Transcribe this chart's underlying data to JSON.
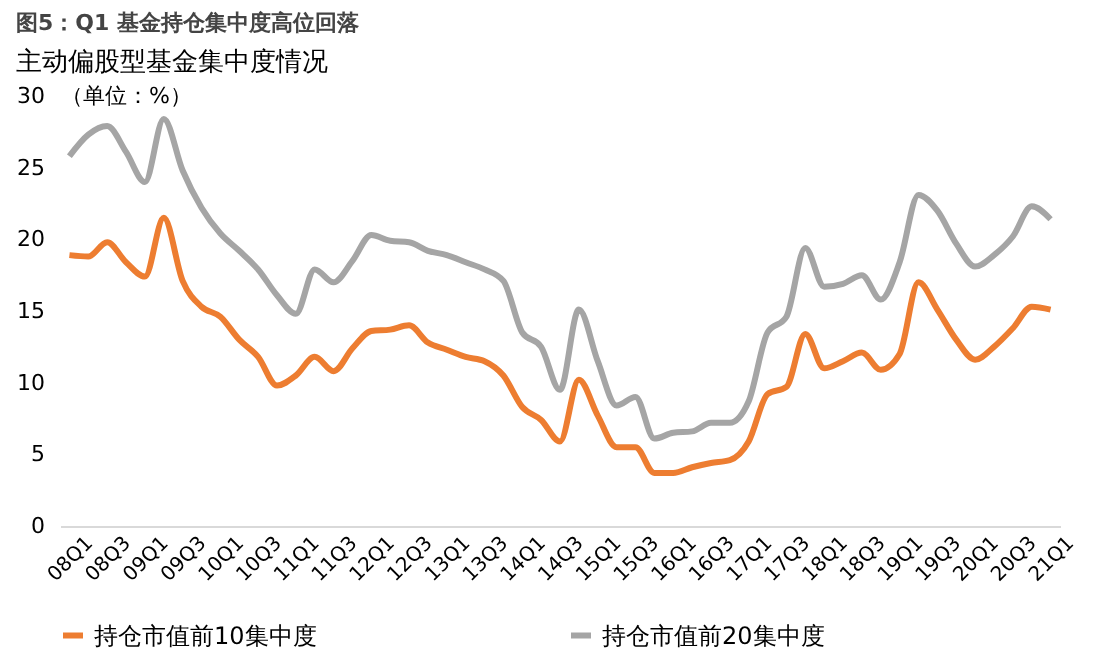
{
  "chart_data": {
    "type": "line",
    "title": "图5：Q1 基金持仓集中度高位回落",
    "subtitle": "主动偏股型基金集中度情况",
    "ylabel": "（单位：%）",
    "categories": [
      "08Q1",
      null,
      "08Q3",
      null,
      "09Q1",
      null,
      "09Q3",
      null,
      "10Q1",
      null,
      "10Q3",
      null,
      "11Q1",
      null,
      "11Q3",
      null,
      "12Q1",
      null,
      "12Q3",
      null,
      "13Q1",
      null,
      "13Q3",
      null,
      "14Q1",
      null,
      "14Q3",
      null,
      "15Q1",
      null,
      "15Q3",
      null,
      "16Q1",
      null,
      "16Q3",
      null,
      "17Q1",
      null,
      "17Q3",
      null,
      "18Q1",
      null,
      "18Q3",
      null,
      "19Q1",
      null,
      "19Q3",
      null,
      "20Q1",
      null,
      "20Q3",
      null,
      "21Q1"
    ],
    "series": [
      {
        "name": "持仓市值前10集中度",
        "color": "#ed7d31",
        "values": [
          18.9,
          18.8,
          19.8,
          18.4,
          17.4,
          21.5,
          17.1,
          15.3,
          14.6,
          13.0,
          11.8,
          9.8,
          10.5,
          11.8,
          10.8,
          12.4,
          13.6,
          13.7,
          14.0,
          12.8,
          12.3,
          11.8,
          11.5,
          10.5,
          8.3,
          7.4,
          5.9,
          10.2,
          7.7,
          5.5,
          5.5,
          3.7,
          3.7,
          4.1,
          4.4,
          4.6,
          5.9,
          9.2,
          9.7,
          13.4,
          11.0,
          11.5,
          12.1,
          10.9,
          12.0,
          17.0,
          15.1,
          13.0,
          11.6,
          12.5,
          13.8,
          15.3,
          15.1
        ]
      },
      {
        "name": "持仓市值前20集中度",
        "color": "#a5a5a5",
        "values": [
          25.8,
          27.3,
          27.9,
          26.1,
          24.0,
          28.4,
          24.8,
          22.2,
          20.4,
          19.2,
          17.9,
          16.1,
          14.8,
          17.9,
          17.0,
          18.5,
          20.3,
          19.9,
          19.8,
          19.2,
          18.9,
          18.4,
          17.9,
          17.1,
          13.5,
          12.5,
          9.5,
          15.1,
          11.5,
          8.4,
          9.0,
          6.1,
          6.5,
          6.6,
          7.2,
          7.2,
          8.7,
          13.5,
          14.6,
          19.4,
          16.7,
          16.9,
          17.5,
          15.8,
          18.4,
          23.1,
          22.0,
          19.7,
          18.1,
          18.9,
          20.2,
          22.3,
          21.4
        ]
      }
    ],
    "ylim": [
      0,
      30
    ],
    "yticks": [
      0,
      5,
      10,
      15,
      20,
      25,
      30
    ],
    "grid": false,
    "legend": "bottom",
    "marker": "none",
    "line_style": "solid"
  }
}
